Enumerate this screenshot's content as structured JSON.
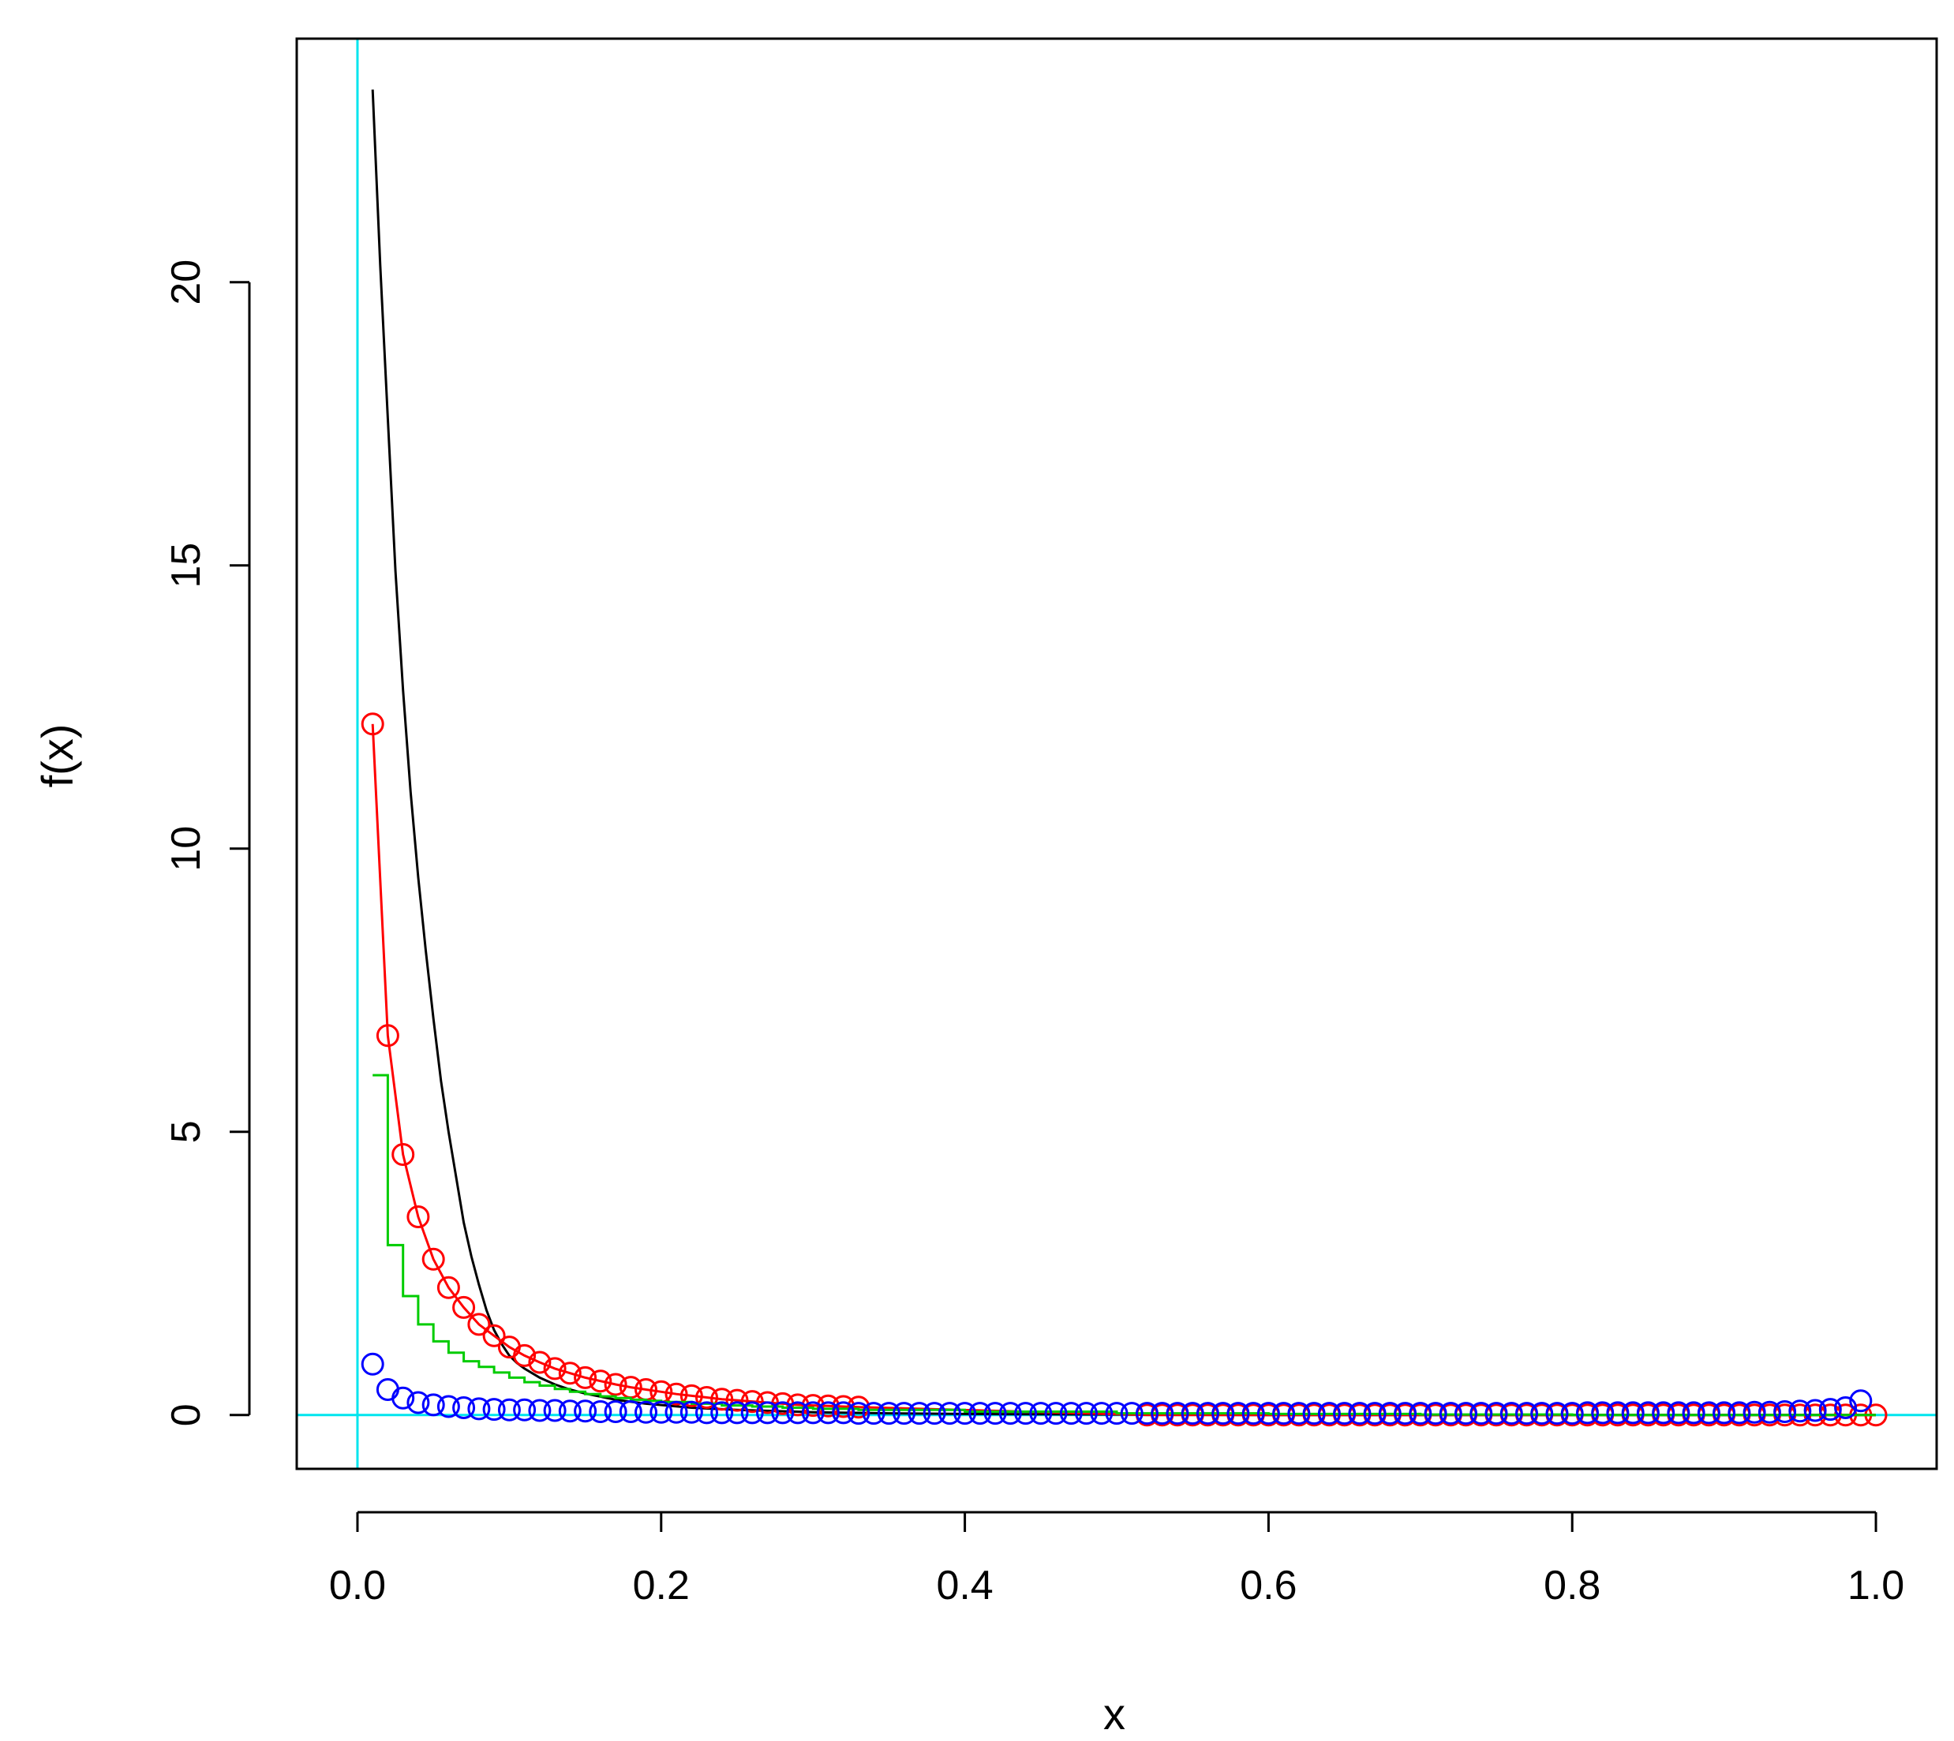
{
  "chart_data": {
    "type": "line",
    "title": "",
    "xlabel": "x",
    "ylabel": "f(x)",
    "xlim": [
      -0.04,
      1.04
    ],
    "ylim": [
      -0.95,
      24.3
    ],
    "xticks": [
      0.0,
      0.2,
      0.4,
      0.6,
      0.8,
      1.0
    ],
    "xtick_labels": [
      "0.0",
      "0.2",
      "0.4",
      "0.6",
      "0.8",
      "1.0"
    ],
    "yticks": [
      0,
      5,
      10,
      15,
      20
    ],
    "ytick_labels": [
      "0",
      "5",
      "10",
      "15",
      "20"
    ],
    "grid": false,
    "legend": "none",
    "reference_lines": {
      "color": "#00e5ee",
      "horizontal_y": 0,
      "vertical_x": 0
    },
    "series": [
      {
        "style": "line",
        "color": "#000000",
        "x": [
          0.01,
          0.015,
          0.02,
          0.025,
          0.03,
          0.035,
          0.04,
          0.045,
          0.05,
          0.055,
          0.06,
          0.065,
          0.07,
          0.075,
          0.08,
          0.085,
          0.09,
          0.095,
          0.1,
          0.105,
          0.11,
          0.12,
          0.13,
          0.14,
          0.15,
          0.17,
          0.19,
          0.22,
          0.25,
          0.3,
          0.35,
          0.4,
          0.5,
          0.6,
          0.7,
          0.8,
          0.9,
          1.0
        ],
        "values": [
          23.4,
          20.3,
          17.6,
          14.9,
          12.8,
          11.0,
          9.5,
          8.2,
          7.0,
          5.9,
          5.0,
          4.2,
          3.4,
          2.8,
          2.3,
          1.85,
          1.5,
          1.25,
          1.05,
          0.92,
          0.82,
          0.66,
          0.54,
          0.45,
          0.38,
          0.27,
          0.2,
          0.13,
          0.09,
          0.05,
          0.03,
          0.02,
          0.01,
          0.0,
          0.0,
          0.0,
          0.0,
          0.0
        ]
      },
      {
        "style": "line+points",
        "color": "#ff0000",
        "x": [
          0.01,
          0.02,
          0.03,
          0.04,
          0.05,
          0.06,
          0.07,
          0.08,
          0.09,
          0.1,
          0.11,
          0.12,
          0.13,
          0.14,
          0.15,
          0.16,
          0.17,
          0.18,
          0.19,
          0.2,
          0.21,
          0.22,
          0.23,
          0.24,
          0.25,
          0.26,
          0.27,
          0.28,
          0.29,
          0.3,
          0.31,
          0.32,
          0.33,
          0.52,
          0.53,
          0.54,
          0.55,
          0.56,
          0.57,
          0.58,
          0.59,
          0.6,
          0.61,
          0.62,
          0.63,
          0.64,
          0.65,
          0.66,
          0.67,
          0.68,
          0.69,
          0.7,
          0.71,
          0.72,
          0.73,
          0.74,
          0.75,
          0.76,
          0.77,
          0.78,
          0.79,
          0.8,
          0.81,
          0.82,
          0.83,
          0.84,
          0.85,
          0.86,
          0.87,
          0.88,
          0.89,
          0.9,
          0.91,
          0.92,
          0.93,
          0.94,
          0.95,
          0.96,
          0.97,
          0.98,
          0.99,
          1.0
        ],
        "values": [
          12.2,
          6.7,
          4.6,
          3.5,
          2.75,
          2.25,
          1.9,
          1.6,
          1.4,
          1.2,
          1.05,
          0.93,
          0.82,
          0.74,
          0.66,
          0.6,
          0.54,
          0.49,
          0.45,
          0.41,
          0.37,
          0.34,
          0.31,
          0.28,
          0.26,
          0.24,
          0.22,
          0.2,
          0.18,
          0.17,
          0.16,
          0.15,
          0.14,
          0.0,
          0.0,
          0.0,
          0.0,
          0.0,
          0.0,
          0.0,
          0.0,
          0.0,
          0.0,
          0.0,
          0.0,
          0.0,
          0.0,
          0.0,
          0.0,
          0.0,
          0.0,
          0.0,
          0.0,
          0.0,
          0.0,
          0.0,
          0.0,
          0.0,
          0.0,
          0.0,
          0.0,
          0.0,
          0.0,
          0.0,
          0.0,
          0.0,
          0.0,
          0.0,
          0.0,
          0.0,
          0.0,
          0.0,
          0.0,
          0.0,
          0.0,
          0.0,
          0.0,
          0.0,
          0.0,
          0.0,
          0.0,
          0.0
        ]
      },
      {
        "style": "step",
        "color": "#00cc00",
        "x": [
          0.01,
          0.02,
          0.03,
          0.04,
          0.05,
          0.06,
          0.07,
          0.08,
          0.09,
          0.1,
          0.11,
          0.12,
          0.13,
          0.14,
          0.15,
          0.16,
          0.17,
          0.18,
          0.19,
          0.2,
          0.22,
          0.24,
          0.26,
          0.28,
          0.3,
          0.33,
          0.4,
          0.5,
          0.6,
          0.7,
          0.8,
          0.9,
          1.0
        ],
        "values": [
          6.0,
          3.0,
          2.1,
          1.6,
          1.3,
          1.1,
          0.95,
          0.85,
          0.75,
          0.66,
          0.58,
          0.52,
          0.46,
          0.41,
          0.37,
          0.33,
          0.3,
          0.27,
          0.25,
          0.23,
          0.2,
          0.17,
          0.15,
          0.13,
          0.11,
          0.09,
          0.06,
          0.03,
          0.02,
          0.01,
          0.0,
          0.0,
          0.0
        ]
      },
      {
        "style": "points",
        "color": "#0000ff",
        "x": [
          0.01,
          0.02,
          0.03,
          0.04,
          0.05,
          0.06,
          0.07,
          0.08,
          0.09,
          0.1,
          0.11,
          0.12,
          0.13,
          0.14,
          0.15,
          0.16,
          0.17,
          0.18,
          0.19,
          0.2,
          0.21,
          0.22,
          0.23,
          0.24,
          0.25,
          0.26,
          0.27,
          0.28,
          0.29,
          0.3,
          0.31,
          0.32,
          0.33,
          0.34,
          0.35,
          0.36,
          0.37,
          0.38,
          0.39,
          0.4,
          0.41,
          0.42,
          0.43,
          0.44,
          0.45,
          0.46,
          0.47,
          0.48,
          0.49,
          0.5,
          0.51,
          0.52,
          0.53,
          0.54,
          0.55,
          0.56,
          0.57,
          0.58,
          0.59,
          0.6,
          0.61,
          0.62,
          0.63,
          0.64,
          0.65,
          0.66,
          0.67,
          0.68,
          0.69,
          0.7,
          0.71,
          0.72,
          0.73,
          0.74,
          0.75,
          0.76,
          0.77,
          0.78,
          0.79,
          0.8,
          0.81,
          0.82,
          0.83,
          0.84,
          0.85,
          0.86,
          0.87,
          0.88,
          0.89,
          0.9,
          0.91,
          0.92,
          0.93,
          0.94,
          0.95,
          0.96,
          0.97,
          0.98,
          0.99
        ],
        "values": [
          0.9,
          0.45,
          0.3,
          0.22,
          0.18,
          0.15,
          0.13,
          0.11,
          0.1,
          0.09,
          0.09,
          0.08,
          0.08,
          0.07,
          0.07,
          0.06,
          0.06,
          0.06,
          0.05,
          0.05,
          0.05,
          0.05,
          0.04,
          0.04,
          0.04,
          0.04,
          0.04,
          0.04,
          0.04,
          0.04,
          0.04,
          0.04,
          0.03,
          0.03,
          0.03,
          0.03,
          0.03,
          0.03,
          0.03,
          0.03,
          0.03,
          0.03,
          0.03,
          0.03,
          0.03,
          0.03,
          0.03,
          0.03,
          0.03,
          0.03,
          0.03,
          0.03,
          0.03,
          0.03,
          0.03,
          0.03,
          0.03,
          0.03,
          0.03,
          0.03,
          0.03,
          0.03,
          0.03,
          0.03,
          0.03,
          0.03,
          0.03,
          0.03,
          0.03,
          0.03,
          0.03,
          0.03,
          0.03,
          0.03,
          0.03,
          0.03,
          0.03,
          0.03,
          0.03,
          0.03,
          0.04,
          0.04,
          0.04,
          0.04,
          0.04,
          0.04,
          0.04,
          0.04,
          0.04,
          0.04,
          0.04,
          0.05,
          0.05,
          0.06,
          0.07,
          0.08,
          0.1,
          0.13,
          0.25
        ]
      }
    ]
  }
}
